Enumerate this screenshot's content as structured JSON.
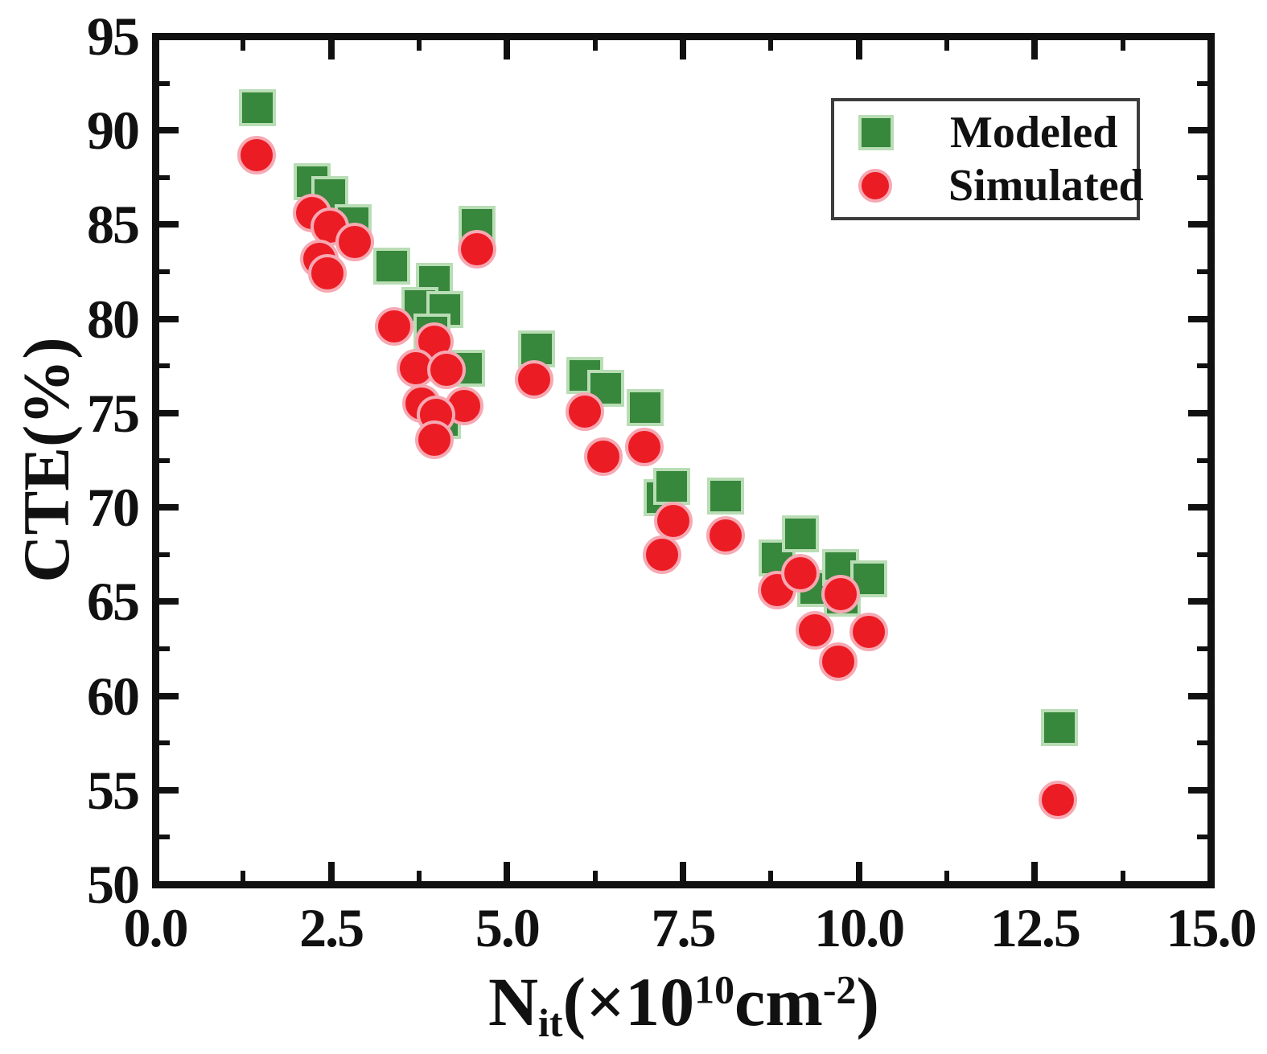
{
  "figure": {
    "background": "#ffffff"
  },
  "chart_data": {
    "type": "scatter",
    "title": "",
    "ylabel": "CTE(%)",
    "xlabel": {
      "base": "N",
      "subscript": "it",
      "open": "(×10",
      "exponent": "10",
      "unit": "cm",
      "unit_exponent": "-2",
      "close": ")"
    },
    "xlim": [
      0,
      15
    ],
    "ylim": [
      50,
      95
    ],
    "grid": false,
    "legend_position": "upper right",
    "x_ticks": {
      "values": [
        0,
        2.5,
        5,
        7.5,
        10,
        12.5,
        15
      ],
      "labels": [
        "0.0",
        "2.5",
        "5.0",
        "7.5",
        "10.0",
        "12.5",
        "15.0"
      ]
    },
    "y_ticks": {
      "values": [
        50,
        55,
        60,
        65,
        70,
        75,
        80,
        85,
        90,
        95
      ],
      "labels": [
        "50",
        "55",
        "60",
        "65",
        "70",
        "75",
        "80",
        "85",
        "90",
        "95"
      ]
    },
    "series": [
      {
        "name": "Modeled",
        "marker": "square",
        "color": "#37873c",
        "edge_color": "#b9ddb5",
        "points": [
          [
            1.45,
            91.2
          ],
          [
            2.23,
            87.3
          ],
          [
            2.48,
            86.6
          ],
          [
            2.81,
            85.1
          ],
          [
            3.36,
            82.8
          ],
          [
            3.97,
            82.0
          ],
          [
            3.76,
            80.7
          ],
          [
            4.12,
            80.5
          ],
          [
            3.93,
            79.3
          ],
          [
            4.42,
            77.4
          ],
          [
            4.08,
            74.6
          ],
          [
            4.57,
            85.0
          ],
          [
            5.42,
            78.4
          ],
          [
            6.11,
            77.0
          ],
          [
            6.4,
            76.3
          ],
          [
            6.96,
            75.3
          ],
          [
            7.2,
            70.5
          ],
          [
            7.34,
            71.1
          ],
          [
            8.11,
            70.6
          ],
          [
            8.84,
            67.3
          ],
          [
            9.17,
            68.6
          ],
          [
            9.39,
            65.7
          ],
          [
            9.74,
            66.8
          ],
          [
            9.76,
            65.2
          ],
          [
            10.14,
            66.2
          ],
          [
            12.85,
            58.3
          ]
        ]
      },
      {
        "name": "Simulated",
        "marker": "circle",
        "color": "#ec1c24",
        "edge_color": "#f6a9b3",
        "points": [
          [
            1.44,
            88.7
          ],
          [
            2.23,
            85.6
          ],
          [
            2.48,
            84.9
          ],
          [
            2.84,
            84.1
          ],
          [
            2.33,
            83.2
          ],
          [
            2.45,
            82.4
          ],
          [
            3.39,
            79.6
          ],
          [
            3.97,
            78.8
          ],
          [
            3.7,
            77.4
          ],
          [
            4.14,
            77.3
          ],
          [
            3.79,
            75.5
          ],
          [
            4.39,
            75.4
          ],
          [
            3.99,
            74.9
          ],
          [
            3.97,
            73.6
          ],
          [
            4.57,
            83.7
          ],
          [
            5.39,
            76.8
          ],
          [
            6.11,
            75.1
          ],
          [
            6.37,
            72.7
          ],
          [
            6.95,
            73.2
          ],
          [
            7.36,
            69.3
          ],
          [
            7.2,
            67.5
          ],
          [
            8.11,
            68.5
          ],
          [
            8.84,
            65.6
          ],
          [
            9.17,
            66.5
          ],
          [
            9.74,
            65.4
          ],
          [
            9.37,
            63.5
          ],
          [
            10.14,
            63.4
          ],
          [
            9.71,
            61.8
          ],
          [
            12.83,
            54.5
          ]
        ]
      }
    ]
  },
  "legend": {
    "entries": [
      {
        "label": "Modeled"
      },
      {
        "label": "Simulated"
      }
    ]
  }
}
